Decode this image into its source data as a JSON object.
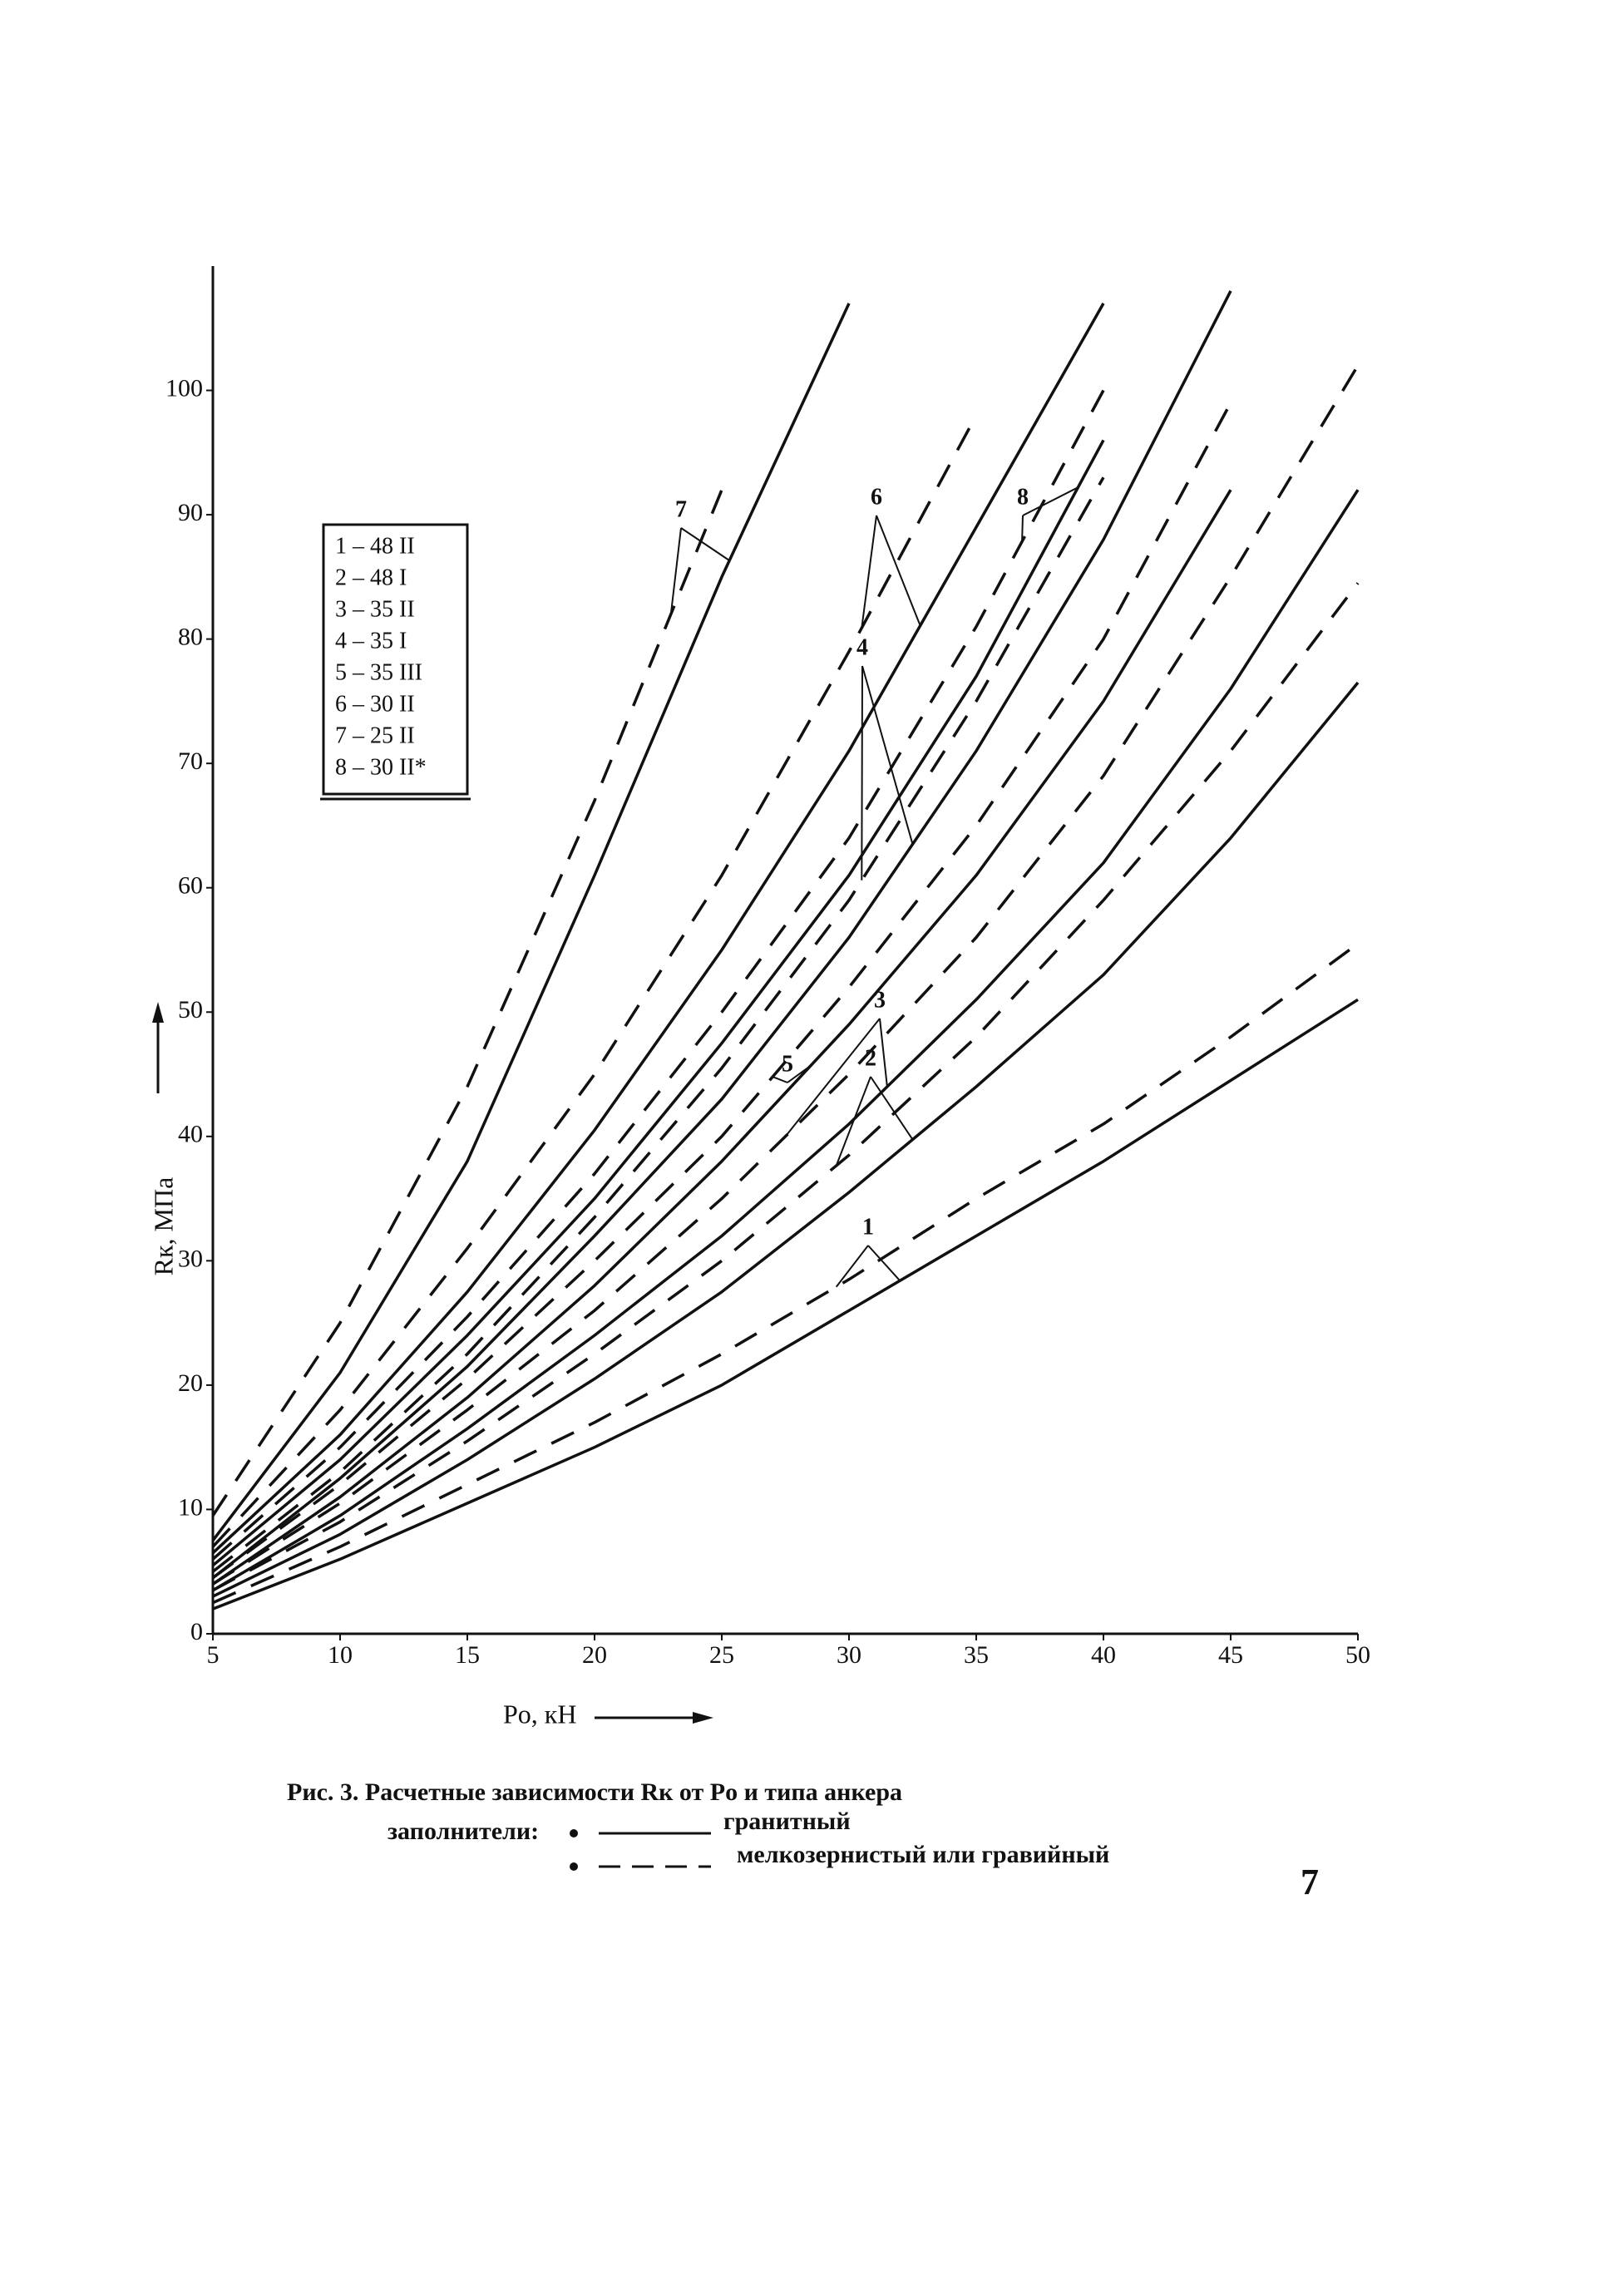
{
  "page_number": "7",
  "chart_data": {
    "type": "line",
    "title": "Рис. 3.  Расчетные зависимости Rк от Pо и типа анкера",
    "xlabel": "Pо, кН",
    "ylabel": "Rк, МПа",
    "x": [
      5,
      10,
      15,
      20,
      25,
      30,
      35,
      40,
      45,
      50
    ],
    "xlim": [
      5,
      50
    ],
    "ylim": [
      0,
      110
    ],
    "xticks": [
      5,
      10,
      15,
      20,
      25,
      30,
      35,
      40,
      45,
      50
    ],
    "yticks": [
      0,
      10,
      20,
      30,
      40,
      50,
      60,
      70,
      80,
      90,
      100
    ],
    "color": "#111111",
    "fillers_label": "заполнители:",
    "fillers": [
      {
        "name": "гранитный",
        "dashed": false
      },
      {
        "name": "мелкозернистый или гравийный",
        "dashed": true
      }
    ],
    "series": [
      {
        "name": "1",
        "legend": "1 – 48 II",
        "values": [
          [
            2,
            6,
            10.5,
            15,
            20,
            26,
            32,
            38,
            44.5,
            51
          ],
          [
            2.5,
            7,
            12,
            17,
            22.5,
            28.5,
            35,
            41,
            48,
            55.5
          ]
        ]
      },
      {
        "name": "2",
        "legend": "2 – 48 I",
        "values": [
          [
            3,
            8,
            14,
            20.5,
            27.5,
            35.5,
            44,
            53,
            64,
            76.5
          ],
          [
            3.5,
            9,
            15.5,
            22.5,
            30,
            38.5,
            48,
            59,
            71,
            84.5
          ]
        ]
      },
      {
        "name": "3",
        "legend": "3 – 35 II",
        "values": [
          [
            3.5,
            9.5,
            16.5,
            24,
            32,
            41,
            51,
            62,
            76,
            92
          ],
          [
            4,
            10.5,
            18,
            26,
            35,
            45,
            56,
            69,
            85,
            102
          ]
        ]
      },
      {
        "name": "4",
        "legend": "4 – 35 I",
        "values": [
          [
            4.5,
            12.5,
            21.5,
            32,
            43,
            56,
            71,
            88,
            108,
            null
          ],
          [
            5,
            13,
            22.5,
            33.5,
            45.5,
            59,
            75,
            93,
            null,
            null
          ]
        ]
      },
      {
        "name": "5",
        "legend": "5 – 35 III",
        "values": [
          [
            4,
            11,
            19,
            28,
            38,
            49,
            61,
            75,
            92,
            null
          ],
          [
            4.5,
            12,
            20.5,
            30,
            40,
            52,
            65,
            80,
            99,
            null
          ]
        ]
      },
      {
        "name": "6",
        "legend": "6 – 30 II",
        "values": [
          [
            6.5,
            16,
            27.5,
            40.5,
            55,
            71,
            89,
            107,
            null,
            null
          ],
          [
            7,
            18,
            31,
            45,
            61,
            79,
            98,
            null,
            null,
            null
          ]
        ]
      },
      {
        "name": "7",
        "legend": "7 – 25 II",
        "values": [
          [
            7.5,
            21,
            38,
            61,
            85,
            107,
            null,
            null,
            null,
            null
          ],
          [
            9.5,
            25,
            44,
            67,
            92,
            null,
            null,
            null,
            null,
            null
          ]
        ]
      },
      {
        "name": "8",
        "legend": "8 – 30 II*",
        "values": [
          [
            5.5,
            14,
            24,
            35,
            47.5,
            61,
            77,
            96,
            null,
            null
          ],
          [
            6,
            15,
            25.5,
            37,
            50,
            64,
            81,
            100,
            null,
            null
          ]
        ]
      }
    ]
  }
}
